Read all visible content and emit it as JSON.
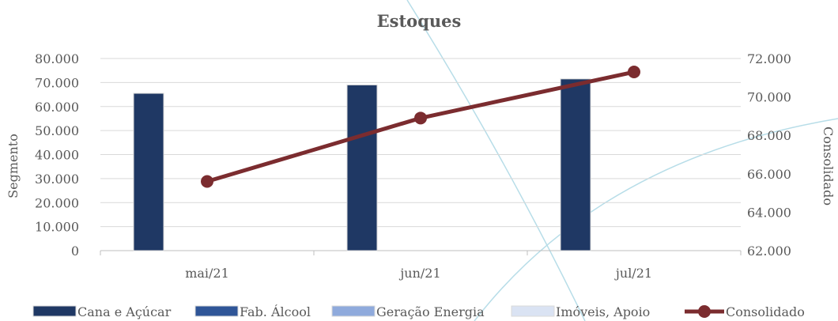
{
  "chart_data": {
    "type": "bar",
    "title": "Estoques",
    "categories": [
      "mai/21",
      "jun/21",
      "jul/21"
    ],
    "y_left": {
      "label": "Segmento",
      "range": [
        0,
        80000
      ],
      "ticks": [
        "0",
        "10.000",
        "20.000",
        "30.000",
        "40.000",
        "50.000",
        "60.000",
        "70.000",
        "80.000"
      ]
    },
    "y_right": {
      "label": "Consolidado",
      "range": [
        62000,
        72000
      ],
      "ticks": [
        "62.000",
        "64.000",
        "66.000",
        "68.000",
        "70.000",
        "72.000"
      ]
    },
    "series": [
      {
        "name": "Cana e Açúcar",
        "type": "bar",
        "axis": "left",
        "color": "#1f3864",
        "values": [
          65500,
          69000,
          71500
        ]
      },
      {
        "name": "Fab. Álcool",
        "type": "bar",
        "axis": "left",
        "color": "#2f5597",
        "values": [
          0,
          0,
          0
        ]
      },
      {
        "name": "Geração Energia",
        "type": "bar",
        "axis": "left",
        "color": "#8faadc",
        "values": [
          0,
          0,
          0
        ]
      },
      {
        "name": "Imóveis, Apoio",
        "type": "bar",
        "axis": "left",
        "color": "#dae3f3",
        "values": [
          0,
          0,
          0
        ]
      },
      {
        "name": "Consolidado",
        "type": "line",
        "axis": "right",
        "color": "#7b2c2f",
        "values": [
          65600,
          68900,
          71300
        ]
      }
    ],
    "grid": true,
    "legend_position": "bottom"
  }
}
